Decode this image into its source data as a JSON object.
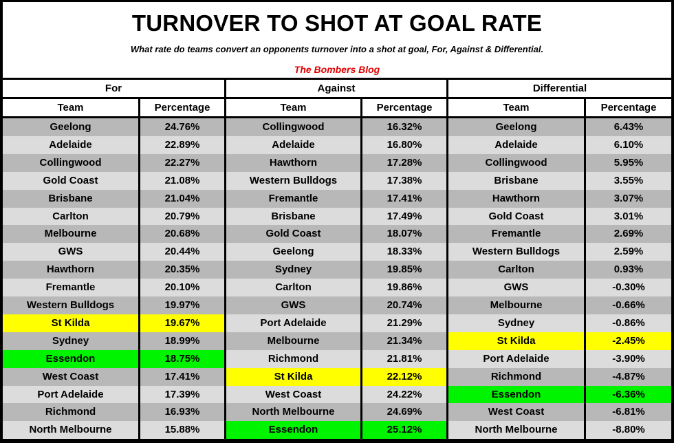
{
  "header": {
    "title": "TURNOVER TO SHOT AT GOAL RATE",
    "subtitle": "What rate do teams convert an opponents turnover into a shot at goal, For, Against & Differential.",
    "blog": "The Bombers Blog"
  },
  "colors": {
    "row_dark": "#b8b8b8",
    "row_light": "#dcdcdc",
    "highlight_st_kilda": "#ffff00",
    "highlight_essendon": "#00f400",
    "blog_text": "#e00000"
  },
  "tables": [
    {
      "title": "For",
      "col_team": "Team",
      "col_pct": "Percentage",
      "rows": [
        {
          "team": "Geelong",
          "pct": "24.76%"
        },
        {
          "team": "Adelaide",
          "pct": "22.89%"
        },
        {
          "team": "Collingwood",
          "pct": "22.27%"
        },
        {
          "team": "Gold Coast",
          "pct": "21.08%"
        },
        {
          "team": "Brisbane",
          "pct": "21.04%"
        },
        {
          "team": "Carlton",
          "pct": "20.79%"
        },
        {
          "team": "Melbourne",
          "pct": "20.68%"
        },
        {
          "team": "GWS",
          "pct": "20.44%"
        },
        {
          "team": "Hawthorn",
          "pct": "20.35%"
        },
        {
          "team": "Fremantle",
          "pct": "20.10%"
        },
        {
          "team": "Western Bulldogs",
          "pct": "19.97%"
        },
        {
          "team": "St Kilda",
          "pct": "19.67%",
          "hl": "yellow"
        },
        {
          "team": "Sydney",
          "pct": "18.99%"
        },
        {
          "team": "Essendon",
          "pct": "18.75%",
          "hl": "green"
        },
        {
          "team": "West Coast",
          "pct": "17.41%"
        },
        {
          "team": "Port Adelaide",
          "pct": "17.39%"
        },
        {
          "team": "Richmond",
          "pct": "16.93%"
        },
        {
          "team": "North Melbourne",
          "pct": "15.88%"
        }
      ]
    },
    {
      "title": "Against",
      "col_team": "Team",
      "col_pct": "Percentage",
      "rows": [
        {
          "team": "Collingwood",
          "pct": "16.32%"
        },
        {
          "team": "Adelaide",
          "pct": "16.80%"
        },
        {
          "team": "Hawthorn",
          "pct": "17.28%"
        },
        {
          "team": "Western Bulldogs",
          "pct": "17.38%"
        },
        {
          "team": "Fremantle",
          "pct": "17.41%"
        },
        {
          "team": "Brisbane",
          "pct": "17.49%"
        },
        {
          "team": "Gold Coast",
          "pct": "18.07%"
        },
        {
          "team": "Geelong",
          "pct": "18.33%"
        },
        {
          "team": "Sydney",
          "pct": "19.85%"
        },
        {
          "team": "Carlton",
          "pct": "19.86%"
        },
        {
          "team": "GWS",
          "pct": "20.74%"
        },
        {
          "team": "Port Adelaide",
          "pct": "21.29%"
        },
        {
          "team": "Melbourne",
          "pct": "21.34%"
        },
        {
          "team": "Richmond",
          "pct": "21.81%"
        },
        {
          "team": "St Kilda",
          "pct": "22.12%",
          "hl": "yellow"
        },
        {
          "team": "West Coast",
          "pct": "24.22%"
        },
        {
          "team": "North Melbourne",
          "pct": "24.69%"
        },
        {
          "team": "Essendon",
          "pct": "25.12%",
          "hl": "green"
        }
      ]
    },
    {
      "title": "Differential",
      "col_team": "Team",
      "col_pct": "Percentage",
      "rows": [
        {
          "team": "Geelong",
          "pct": "6.43%"
        },
        {
          "team": "Adelaide",
          "pct": "6.10%"
        },
        {
          "team": "Collingwood",
          "pct": "5.95%"
        },
        {
          "team": "Brisbane",
          "pct": "3.55%"
        },
        {
          "team": "Hawthorn",
          "pct": "3.07%"
        },
        {
          "team": "Gold Coast",
          "pct": "3.01%"
        },
        {
          "team": "Fremantle",
          "pct": "2.69%"
        },
        {
          "team": "Western Bulldogs",
          "pct": "2.59%"
        },
        {
          "team": "Carlton",
          "pct": "0.93%"
        },
        {
          "team": "GWS",
          "pct": "-0.30%"
        },
        {
          "team": "Melbourne",
          "pct": "-0.66%"
        },
        {
          "team": "Sydney",
          "pct": "-0.86%"
        },
        {
          "team": "St Kilda",
          "pct": "-2.45%",
          "hl": "yellow"
        },
        {
          "team": "Port Adelaide",
          "pct": "-3.90%"
        },
        {
          "team": "Richmond",
          "pct": "-4.87%"
        },
        {
          "team": "Essendon",
          "pct": "-6.36%",
          "hl": "green"
        },
        {
          "team": "West Coast",
          "pct": "-6.81%"
        },
        {
          "team": "North Melbourne",
          "pct": "-8.80%"
        }
      ]
    }
  ]
}
